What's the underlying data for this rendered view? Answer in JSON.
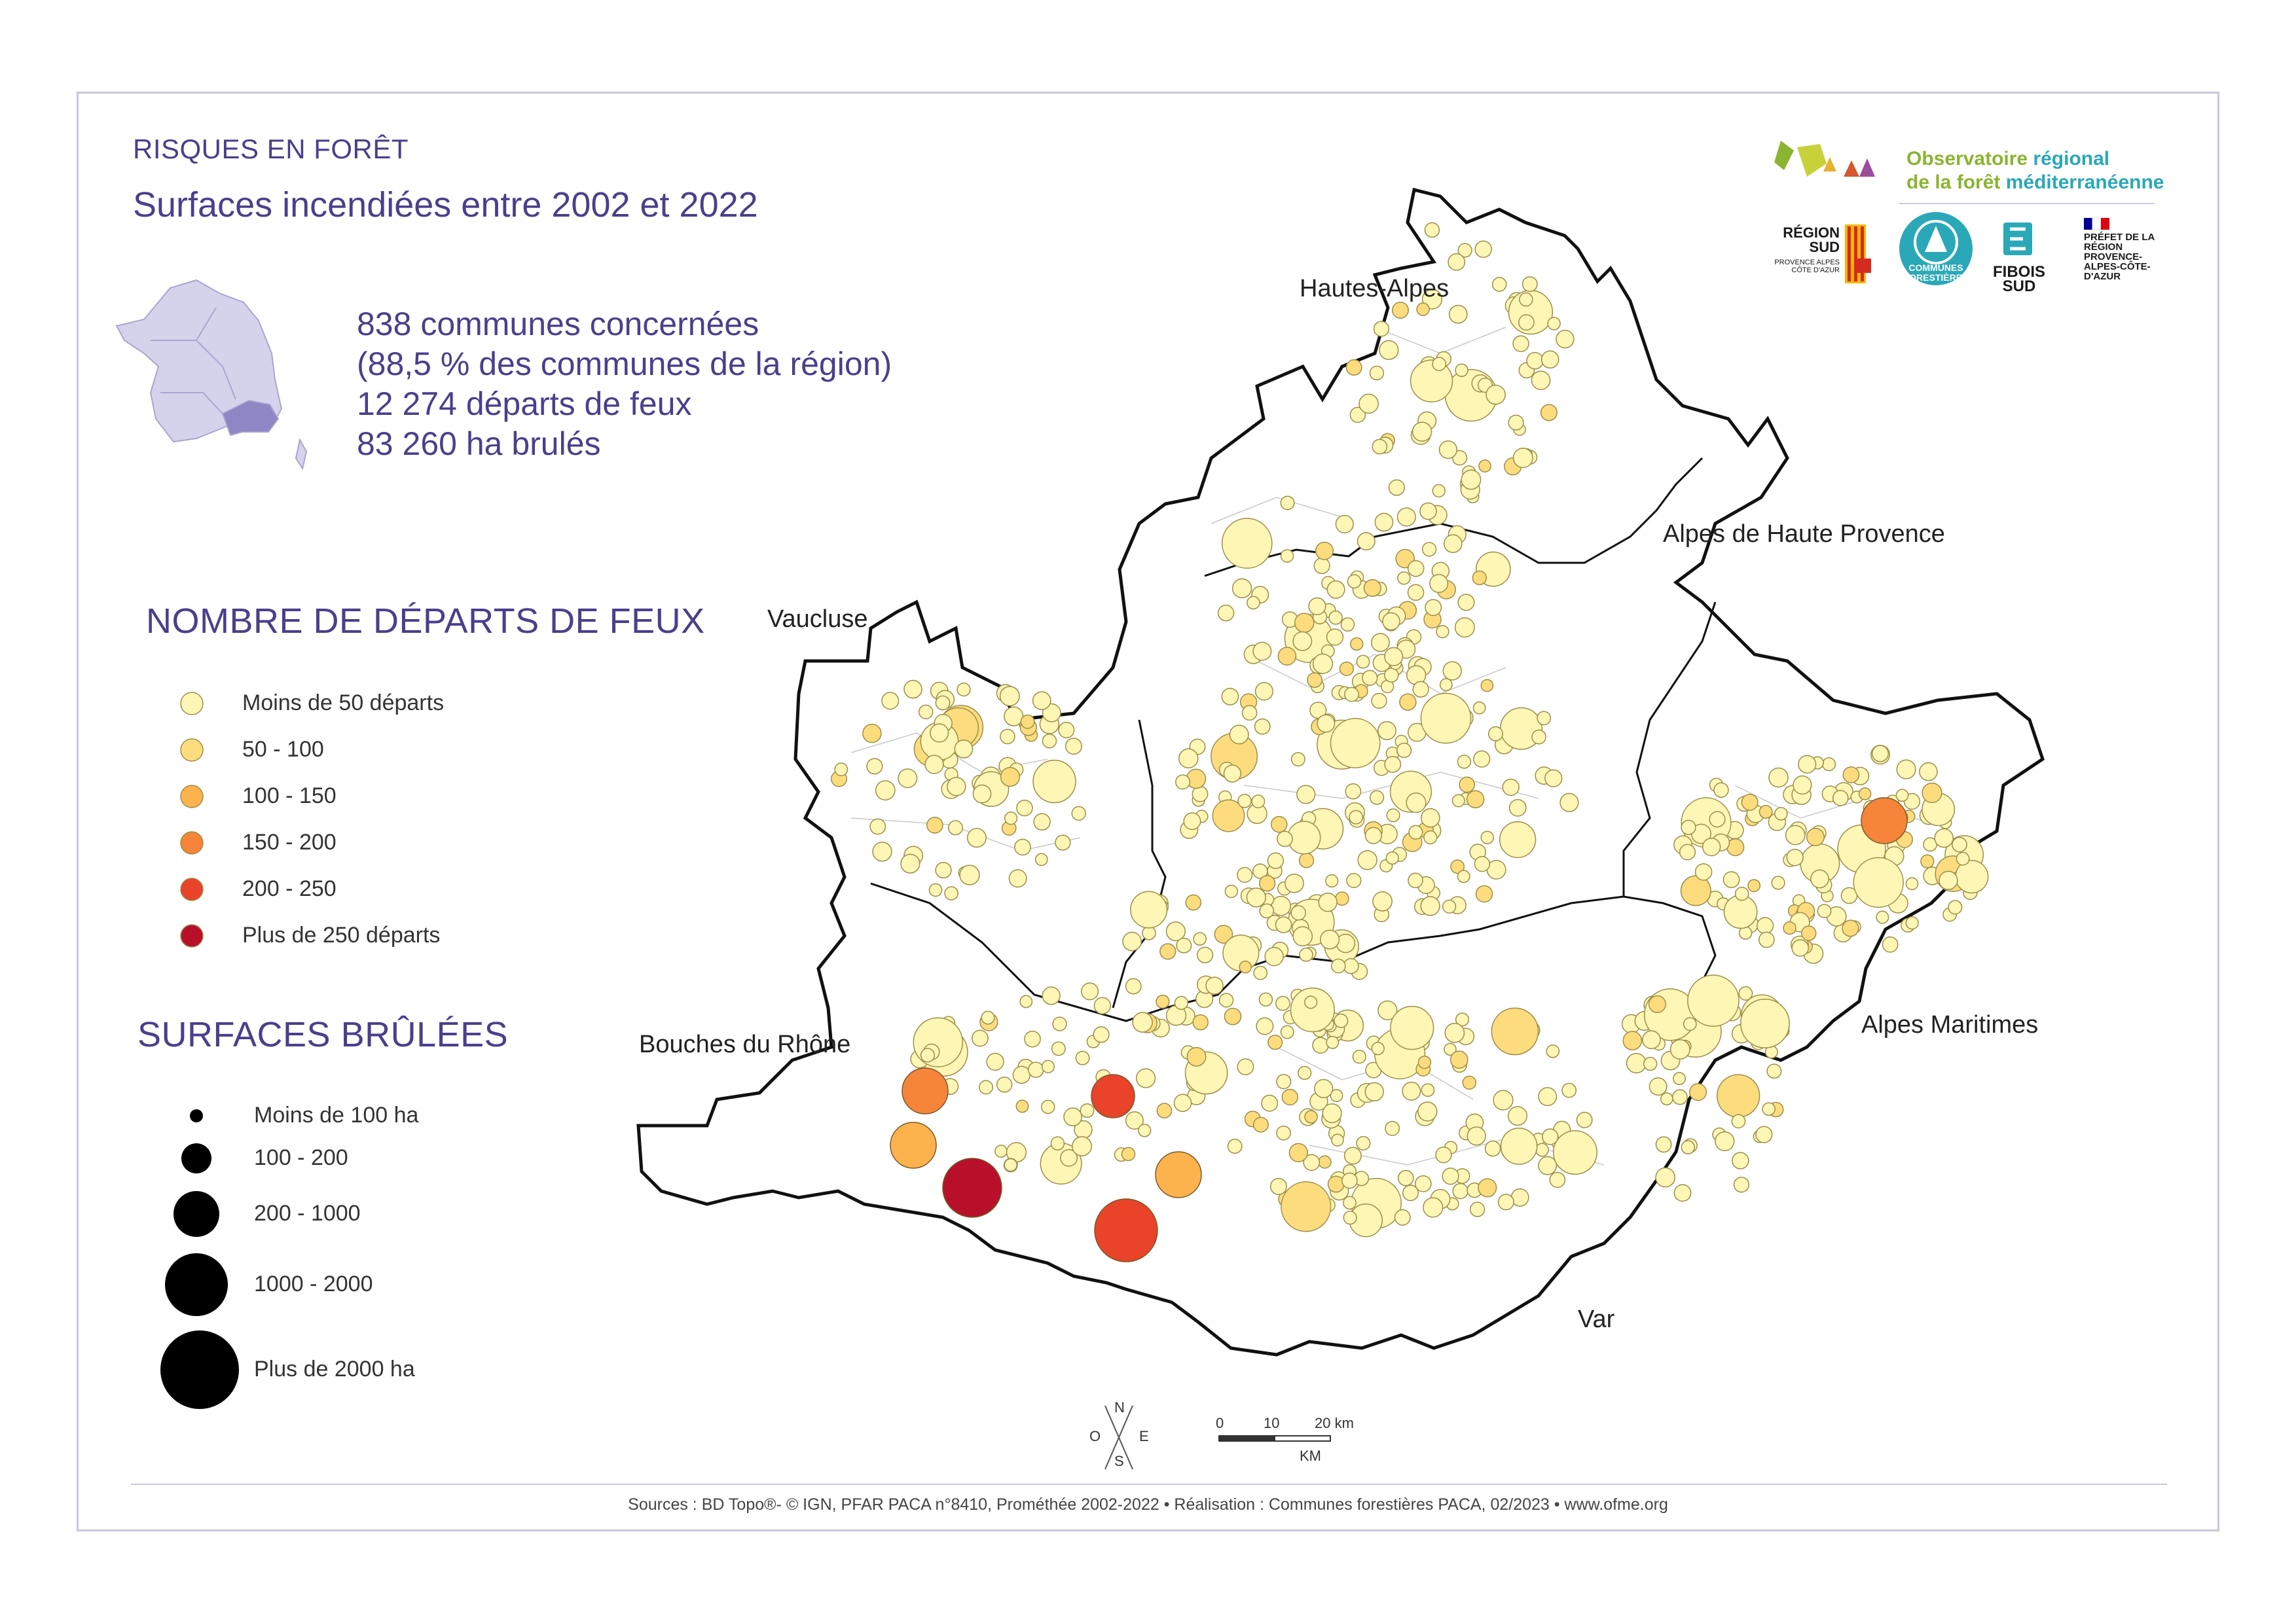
{
  "kicker": "RISQUES EN FORÊT",
  "title": "Surfaces incendiées entre 2002 et 2022",
  "stats": [
    "838 communes concernées",
    "(88,5 % des communes de la région)",
    "12 274 départs de feux",
    "83 260 ha brulés"
  ],
  "legend_fires": {
    "title": "NOMBRE DE DÉPARTS DE FEUX",
    "items": [
      {
        "label": "Moins de 50 départs",
        "color": "#fdf6b5"
      },
      {
        "label": "50 - 100",
        "color": "#fddc7e"
      },
      {
        "label": "100 - 150",
        "color": "#fcb24d"
      },
      {
        "label": "150 - 200",
        "color": "#f6853a"
      },
      {
        "label": "200 - 250",
        "color": "#e9432a"
      },
      {
        "label": "Plus de 250 départs",
        "color": "#b8102b"
      }
    ]
  },
  "legend_area": {
    "title": "SURFACES BRÛLÉES",
    "items": [
      {
        "label": "Moins de 100 ha"
      },
      {
        "label": "100 - 200"
      },
      {
        "label": "200 - 1000"
      },
      {
        "label": "1000 - 2000"
      },
      {
        "label": "Plus de 2000 ha"
      }
    ]
  },
  "regions": {
    "hautes_alpes": "Hautes-Alpes",
    "alpes_haute_provence": "Alpes de Haute Provence",
    "vaucluse": "Vaucluse",
    "bouches_du_rhone": "Bouches du Rhône",
    "alpes_maritimes": "Alpes Maritimes",
    "var": "Var"
  },
  "logos": {
    "ofme_line1a": "Observatoire ",
    "ofme_line1b": "régional",
    "ofme_line2a": "de la forêt ",
    "ofme_line2b": "méditerranéenne",
    "region_sud": "RÉGION SUD",
    "region_sub": "PROVENCE ALPES CÔTE D'AZUR",
    "communes_forestieres": "COMMUNES FORESTIÈRES",
    "fibois": "FIBOIS SUD",
    "prefet": "PRÉFET DE LA RÉGION PROVENCE-ALPES-CÔTE-D'AZUR"
  },
  "compass": {
    "n": "N",
    "s": "S",
    "e": "E",
    "o": "O"
  },
  "scale": {
    "t0": "0",
    "t1": "10",
    "t2": "20 km",
    "unit": "KM"
  },
  "footer": "Sources : BD Topo®- © IGN, PFAR PACA n°8410, Prométhée 2002-2022  • Réalisation : Communes forestières PACA, 02/2023 • www.ofme.org",
  "colors": {
    "accent": "#4b3f8c",
    "frame": "#c9c8dc",
    "ofme_green": "#8bb431",
    "ofme_teal": "#2aa8b8"
  }
}
